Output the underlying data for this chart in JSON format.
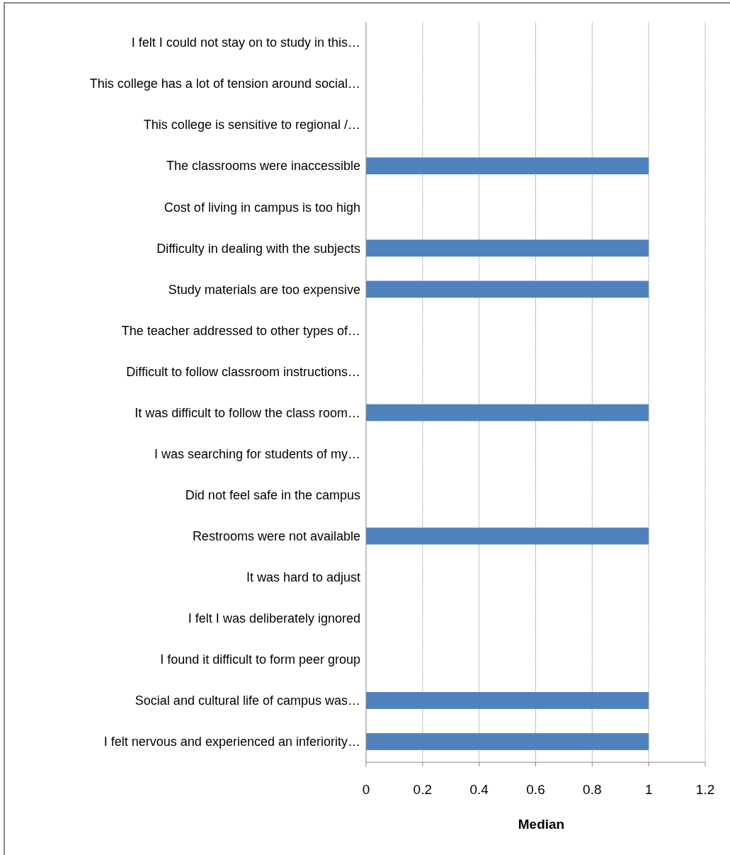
{
  "chart_data": {
    "type": "bar",
    "orientation": "horizontal",
    "xlabel": "Median",
    "categories": [
      "I felt I could not stay on to study in this…",
      "This college has a lot of tension around social…",
      "This college is sensitive to regional /…",
      "The classrooms were inaccessible",
      "Cost of living in campus is too high",
      "Difficulty in dealing with the subjects",
      "Study materials are too expensive",
      "The teacher addressed to other types of…",
      "Difficult to follow classroom instructions…",
      "It was difficult to follow the class room…",
      "I was searching for students of my…",
      "Did not feel safe in the campus",
      "Restrooms were not available",
      "It was hard to adjust",
      "I felt I was deliberately ignored",
      "I found it difficult to form peer group",
      "Social and cultural life of campus was…",
      "I felt nervous and experienced an inferiority…"
    ],
    "values": [
      0,
      0,
      0,
      1,
      0,
      1,
      1,
      0,
      0,
      1,
      0,
      0,
      1,
      0,
      0,
      0,
      1,
      1
    ],
    "color": "#4f81bd",
    "xlim": [
      0,
      1.2
    ],
    "xticks": [
      0,
      0.2,
      0.4,
      0.6,
      0.8,
      1,
      1.2
    ],
    "grid": "x"
  }
}
